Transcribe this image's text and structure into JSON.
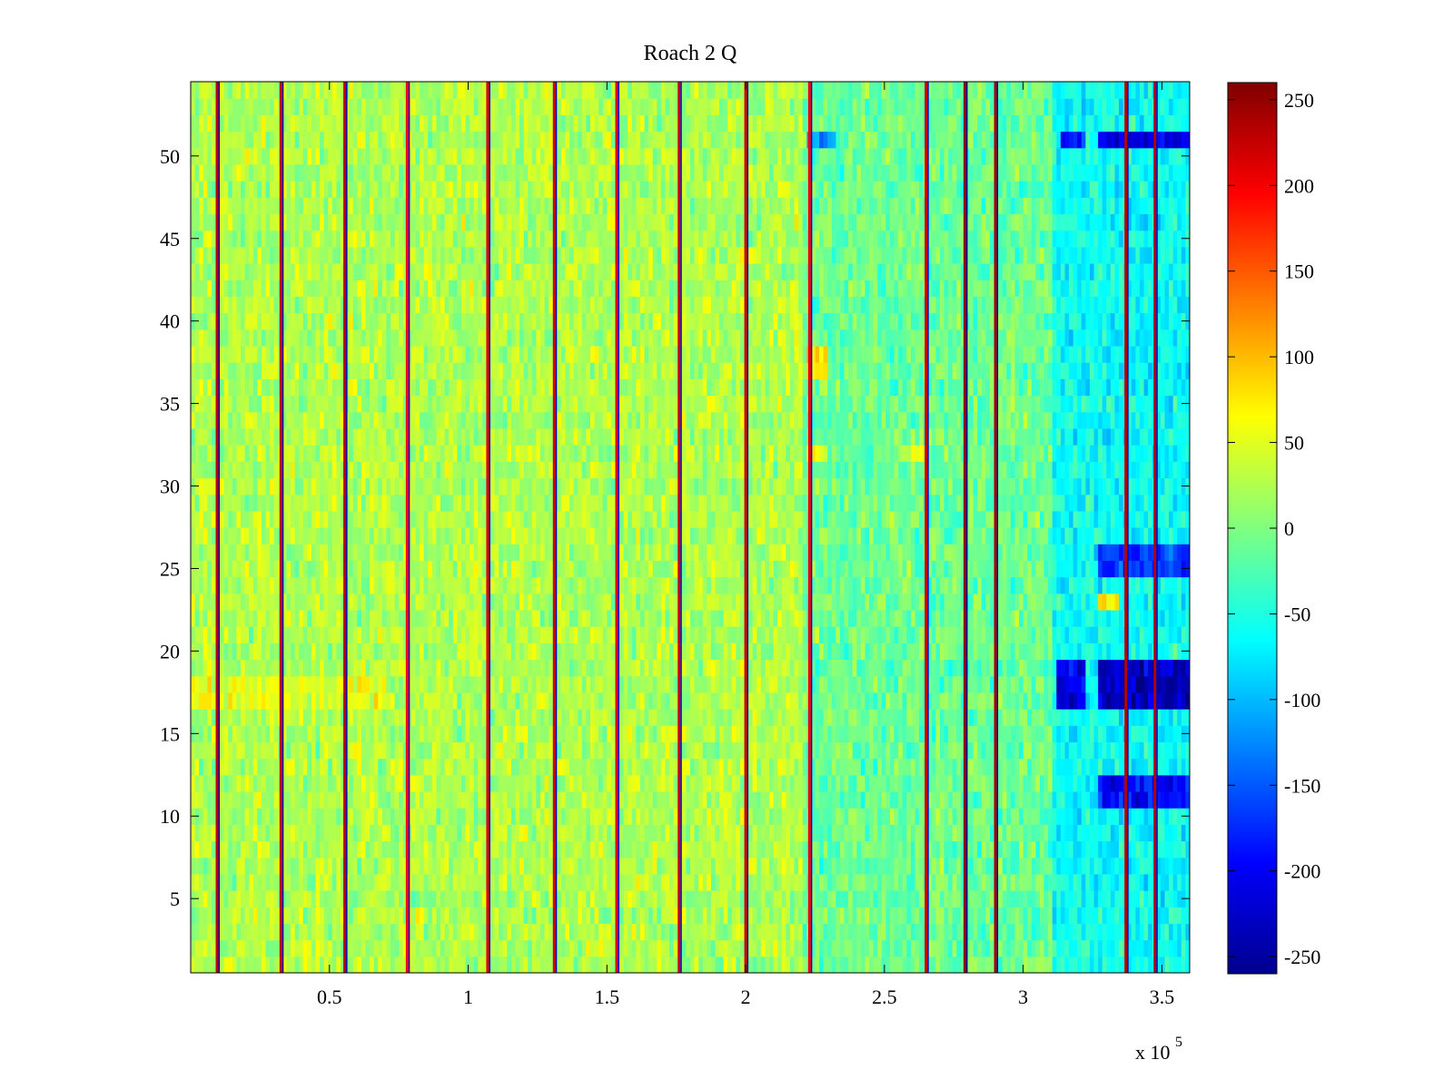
{
  "chart_data": {
    "type": "heatmap",
    "title": "Roach 2 Q",
    "xlabel": "",
    "ylabel": "",
    "x_multiplier_label": {
      "base": "x 10",
      "exponent": "5"
    },
    "xlim": [
      0,
      3.6
    ],
    "ylim": [
      0.5,
      54.5
    ],
    "x_ticks": [
      0.5,
      1,
      1.5,
      2,
      2.5,
      3,
      3.5
    ],
    "x_tick_labels": [
      "0.5",
      "1",
      "1.5",
      "2",
      "2.5",
      "3",
      "3.5"
    ],
    "y_ticks": [
      5,
      10,
      15,
      20,
      25,
      30,
      35,
      40,
      45,
      50
    ],
    "y_tick_labels": [
      "5",
      "10",
      "15",
      "20",
      "25",
      "30",
      "35",
      "40",
      "45",
      "50"
    ],
    "rows": 54,
    "colormap": "jet",
    "colorbar": {
      "range": [
        -260,
        260
      ],
      "ticks": [
        -250,
        -200,
        -150,
        -100,
        -50,
        0,
        50,
        100,
        150,
        200,
        250
      ],
      "tick_labels": [
        "-250",
        "-200",
        "-150",
        "-100",
        "-50",
        "0",
        "50",
        "100",
        "150",
        "200",
        "250"
      ]
    },
    "vertical_stripes": [
      {
        "x": 0.095,
        "value": 230
      },
      {
        "x": 0.325,
        "value": 230
      },
      {
        "x": 0.555,
        "value": 230
      },
      {
        "x": 0.78,
        "value": 200
      },
      {
        "x": 1.07,
        "value": 210
      },
      {
        "x": 1.31,
        "value": 220
      },
      {
        "x": 1.535,
        "value": 210
      },
      {
        "x": 1.76,
        "value": 220
      },
      {
        "x": 2.0,
        "value": 220
      },
      {
        "x": 2.23,
        "value": 200
      },
      {
        "x": 2.65,
        "value": 220
      },
      {
        "x": 2.79,
        "value": 250
      },
      {
        "x": 2.9,
        "value": 240
      },
      {
        "x": 3.37,
        "value": 230
      },
      {
        "x": 3.475,
        "value": 230
      }
    ],
    "regions": [
      {
        "x_range": [
          0,
          2.2
        ],
        "y_range": [
          0.5,
          54.5
        ],
        "typical_value": 25
      },
      {
        "x_range": [
          2.2,
          3.1
        ],
        "y_range": [
          0.5,
          54.5
        ],
        "typical_value": -10
      },
      {
        "x_range": [
          3.1,
          3.6
        ],
        "y_range": [
          0.5,
          54.5
        ],
        "typical_value": -60
      },
      {
        "x_range": [
          3.27,
          3.6
        ],
        "y_range": [
          16.5,
          19.5
        ],
        "typical_value": -230
      },
      {
        "x_range": [
          3.12,
          3.22
        ],
        "y_range": [
          16.5,
          19.5
        ],
        "typical_value": -200
      },
      {
        "x_range": [
          3.27,
          3.6
        ],
        "y_range": [
          24.5,
          26.5
        ],
        "typical_value": -170
      },
      {
        "x_range": [
          3.27,
          3.6
        ],
        "y_range": [
          10.5,
          12.5
        ],
        "typical_value": -190
      },
      {
        "x_range": [
          3.27,
          3.6
        ],
        "y_range": [
          50.5,
          51.5
        ],
        "typical_value": -210
      },
      {
        "x_range": [
          3.13,
          3.22
        ],
        "y_range": [
          50.5,
          51.5
        ],
        "typical_value": -180
      },
      {
        "x_range": [
          3.27,
          3.35
        ],
        "y_range": [
          22.5,
          23.5
        ],
        "typical_value": 70
      },
      {
        "x_range": [
          2.22,
          2.3
        ],
        "y_range": [
          36.5,
          38.5
        ],
        "typical_value": 80
      },
      {
        "x_range": [
          2.22,
          2.3
        ],
        "y_range": [
          31.5,
          32.5
        ],
        "typical_value": 60
      },
      {
        "x_range": [
          2.58,
          2.66
        ],
        "y_range": [
          31.5,
          32.5
        ],
        "typical_value": 60
      },
      {
        "x_range": [
          2.22,
          2.32
        ],
        "y_range": [
          50.5,
          51.5
        ],
        "typical_value": -120
      },
      {
        "x_range": [
          0,
          0.7
        ],
        "y_range": [
          16.5,
          18.5
        ],
        "typical_value": 55
      }
    ]
  }
}
